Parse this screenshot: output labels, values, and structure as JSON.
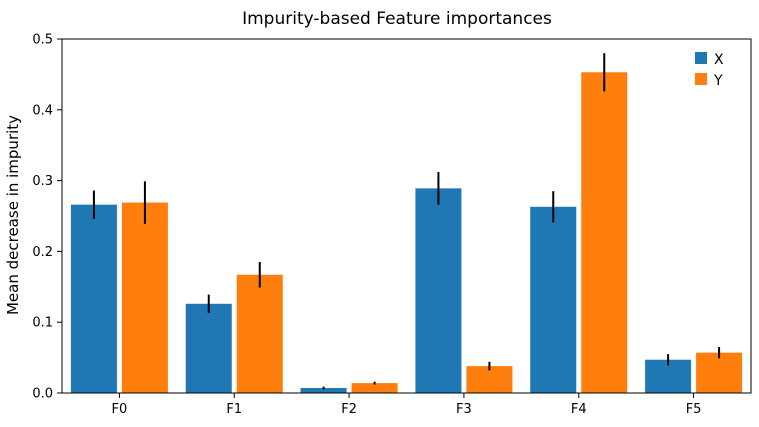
{
  "colors": {
    "X": "#1f77b4",
    "Y": "#ff7f0e",
    "error_bar": "#000000"
  },
  "chart_data": {
    "type": "bar",
    "title": "Impurity-based Feature importances",
    "xlabel": "",
    "ylabel": "Mean decrease in impurity",
    "categories": [
      "F0",
      "F1",
      "F2",
      "F3",
      "F4",
      "F5"
    ],
    "ylim": [
      0,
      0.5
    ],
    "yticks": [
      "0.0",
      "0.1",
      "0.2",
      "0.3",
      "0.4",
      "0.5"
    ],
    "legend_position": "top-right",
    "grid": false,
    "series": [
      {
        "name": "X",
        "values": [
          0.266,
          0.126,
          0.007,
          0.289,
          0.263,
          0.047
        ],
        "errors": [
          0.02,
          0.013,
          0.002,
          0.023,
          0.022,
          0.008
        ]
      },
      {
        "name": "Y",
        "values": [
          0.269,
          0.167,
          0.014,
          0.038,
          0.453,
          0.057
        ],
        "errors": [
          0.03,
          0.018,
          0.002,
          0.006,
          0.027,
          0.008
        ]
      }
    ]
  }
}
